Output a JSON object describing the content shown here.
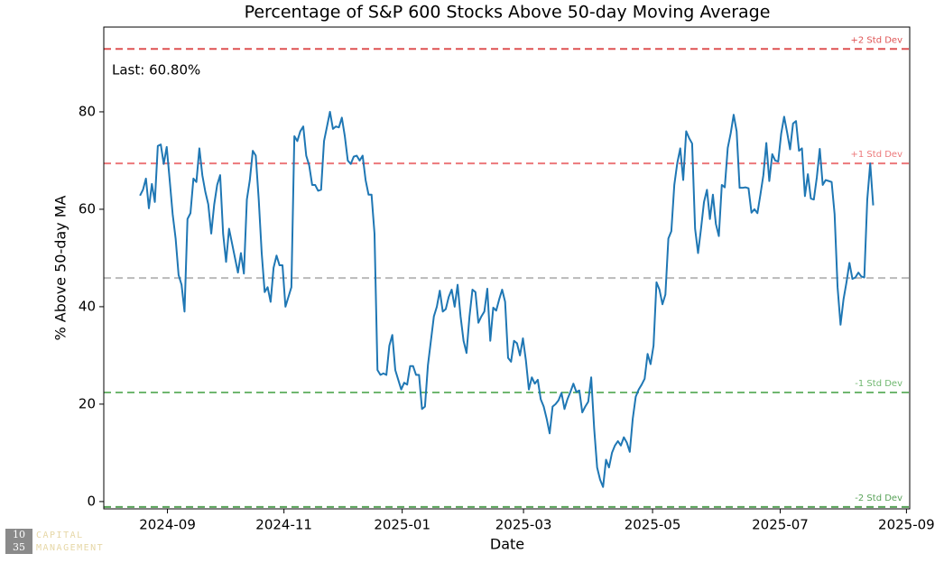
{
  "chart_data": {
    "type": "line",
    "title": "Percentage of S&P 600 Stocks Above 50-day Moving Average",
    "xlabel": "Date",
    "ylabel": "% Above 50-day MA",
    "annotation": "Last: 60.80%",
    "categories": [
      null,
      null,
      null,
      null,
      null,
      null,
      null,
      null,
      null,
      null,
      null,
      null,
      null,
      null,
      null,
      null,
      null,
      null,
      null,
      null,
      null,
      null,
      null,
      null,
      null,
      null,
      null,
      null,
      null,
      null,
      null,
      null,
      null,
      null,
      null,
      null,
      null,
      null,
      null,
      null,
      null,
      null,
      null,
      null,
      null,
      null,
      null,
      null,
      null,
      null,
      null,
      null,
      null,
      null,
      null,
      null,
      null,
      null,
      null,
      null,
      null,
      null,
      null,
      null,
      null,
      null,
      null,
      null,
      null,
      null,
      null,
      null,
      null,
      null,
      null,
      null,
      null,
      null,
      null,
      null,
      null,
      null,
      null,
      null,
      null,
      null,
      null,
      null,
      null,
      null,
      null,
      null,
      null,
      null,
      null,
      null,
      null,
      null,
      null,
      null,
      null,
      null,
      null,
      null,
      null,
      null,
      null,
      null,
      null,
      null,
      null,
      null,
      null,
      null,
      null,
      null,
      null,
      null,
      null,
      null,
      null,
      null,
      null,
      null,
      null,
      null,
      null,
      null,
      null,
      null,
      null,
      null,
      null,
      null,
      null,
      null,
      null,
      null,
      null,
      null,
      null,
      null,
      null,
      null,
      null,
      null,
      null,
      null,
      null,
      null,
      null,
      null,
      null,
      null,
      null,
      null,
      null,
      null,
      null,
      null,
      null,
      null,
      null,
      null,
      null,
      null,
      null,
      null,
      null,
      null,
      null,
      null,
      null,
      null,
      null,
      null,
      null,
      null,
      null,
      null,
      null,
      null,
      null,
      null,
      null,
      null,
      null,
      null,
      null,
      null,
      null,
      null,
      null,
      null,
      null,
      null,
      null,
      null,
      null,
      null,
      null,
      null,
      null,
      null,
      null,
      null,
      null,
      null,
      null,
      null,
      null,
      null,
      null,
      null,
      null,
      null,
      null,
      null,
      null,
      null,
      null,
      null,
      null,
      null,
      null,
      null,
      null,
      null,
      null,
      null,
      null,
      null,
      null,
      null,
      null,
      null,
      null,
      null,
      null,
      null,
      null,
      null,
      null,
      null,
      null,
      null,
      null,
      null
    ],
    "series": [
      {
        "name": "% Above 50-day MA",
        "color": "#1f77b4",
        "values": [
          62.8,
          64,
          66.3,
          60.2,
          65.2,
          61.5,
          73,
          73.3,
          69.3,
          72.8,
          66,
          59,
          54,
          46.5,
          44.5,
          39,
          58,
          59.2,
          66.3,
          65.6,
          72.5,
          67,
          63.6,
          61,
          55,
          61,
          65,
          67,
          55,
          49.2,
          56,
          53,
          50,
          47,
          51,
          46.8,
          62,
          66,
          72,
          71,
          62,
          51,
          43,
          44,
          41,
          48,
          50.5,
          48.5,
          48.5,
          40,
          42,
          44,
          75,
          74,
          76,
          77,
          71,
          69,
          65,
          65,
          63.8,
          64,
          74,
          77,
          80,
          76.5,
          77,
          76.8,
          78.8,
          75,
          70,
          69.3,
          70.8,
          71,
          70,
          71,
          66,
          63,
          63,
          55,
          27,
          26,
          26.3,
          26,
          32,
          34.2,
          27,
          25,
          23,
          24.4,
          24,
          27.8,
          27.8,
          26,
          26,
          19,
          19.5,
          28,
          33,
          38,
          40,
          43.3,
          39,
          39.5,
          42,
          43.5,
          40,
          44.5,
          38,
          33,
          30.5,
          38,
          43.5,
          43,
          36.7,
          38,
          39,
          43.7,
          33,
          39.8,
          39.2,
          41.5,
          43.5,
          41,
          29.5,
          28.7,
          33,
          32.5,
          30,
          33.5,
          29,
          23,
          25.5,
          24.2,
          25,
          21,
          19.5,
          17,
          14,
          19.5,
          20,
          20.8,
          22.3,
          19,
          21,
          22.5,
          24.2,
          22.5,
          22.8,
          18.3,
          19.5,
          20.5,
          25.5,
          15,
          7,
          4.5,
          3,
          8.6,
          7,
          10,
          11.5,
          12.4,
          11.5,
          13.2,
          12.1,
          10.2,
          17,
          21.5,
          23,
          24,
          25.2,
          30.3,
          28.2,
          32,
          45,
          43.5,
          40.5,
          42.5,
          54,
          55.5,
          65,
          69.5,
          72.5,
          66,
          76,
          74.6,
          73.5,
          56,
          51,
          56,
          61.5,
          64,
          58,
          63,
          57,
          54.5,
          65,
          64.5,
          72.6,
          75.6,
          79.4,
          76,
          64.4,
          64.4,
          64.5,
          64.3,
          59.3,
          60,
          59.2,
          63,
          67,
          73.6,
          65.8,
          71.3,
          70,
          69.8,
          75.5,
          79,
          75.8,
          72.3,
          77.6,
          78.1,
          72,
          72.5,
          62.7,
          67.2,
          62.2,
          62,
          66.5,
          72.4,
          65,
          66,
          65.8,
          65.6,
          59,
          44,
          36.3,
          41.5,
          45,
          49,
          45.7,
          46,
          47,
          46.2,
          46,
          62,
          69.4,
          60.8
        ]
      }
    ],
    "xlim": [
      -12.2,
      259.3
    ],
    "xticks": [
      {
        "value": 9.25,
        "label": "2024-09"
      },
      {
        "value": 48.5,
        "label": "2024-11"
      },
      {
        "value": 88.33,
        "label": "2025-01"
      },
      {
        "value": 129.2,
        "label": "2025-03"
      },
      {
        "value": 172.67,
        "label": "2025-05"
      },
      {
        "value": 215.67,
        "label": "2025-07"
      },
      {
        "value": 258.2,
        "label": "2025-09"
      }
    ],
    "ylim": [
      -1.5,
      97.4
    ],
    "yticks": [
      0,
      20,
      40,
      60,
      80
    ],
    "grid": false,
    "hlines": [
      {
        "value": 92.9,
        "label": "+2 Std Dev",
        "color": "#d62728"
      },
      {
        "value": 69.4,
        "label": "+1 Std Dev",
        "color": "#e8575a"
      },
      {
        "value": 45.9,
        "color": "#a8a8a8"
      },
      {
        "value": 22.4,
        "label": "-1 Std Dev",
        "color": "#4ca64c"
      },
      {
        "value": -1.1,
        "label": "-2 Std Dev",
        "color": "#2e8b2e"
      }
    ],
    "logo": {
      "digits": [
        "10",
        "35"
      ],
      "text": [
        "CAPITAL",
        "MANAGEMENT"
      ]
    }
  }
}
